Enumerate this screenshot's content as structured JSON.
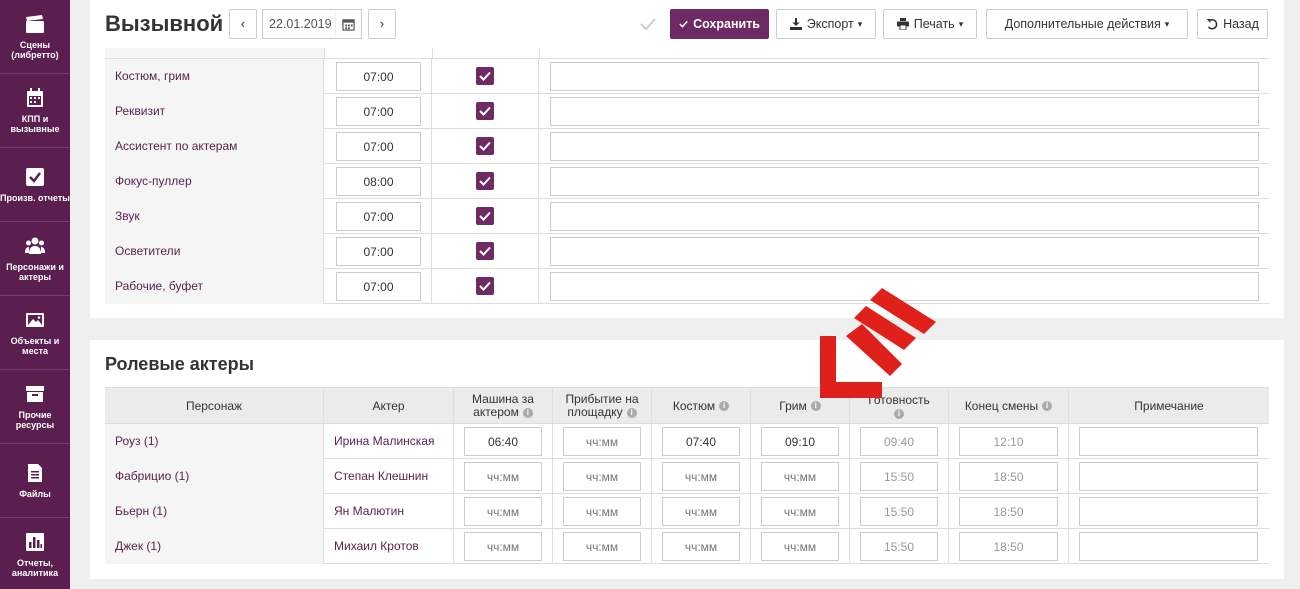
{
  "sidebar": {
    "items": [
      {
        "label": "Сцены (либретто)",
        "icon": "clapperboard-icon"
      },
      {
        "label": "КПП и вызывные",
        "icon": "calendar-icon"
      },
      {
        "label": "Произв. отчеты",
        "icon": "checkbox-icon"
      },
      {
        "label": "Персонажи и актеры",
        "icon": "people-icon"
      },
      {
        "label": "Объекты и места",
        "icon": "picture-icon"
      },
      {
        "label": "Прочие ресурсы",
        "icon": "archive-icon"
      },
      {
        "label": "Файлы",
        "icon": "file-icon"
      },
      {
        "label": "Отчеты, аналитика",
        "icon": "bar-chart-icon"
      }
    ]
  },
  "header": {
    "title": "Вызывной",
    "prev": "‹",
    "next": "›",
    "date": "22.01.2019",
    "save": "Сохранить",
    "export": "Экспорт",
    "print": "Печать",
    "more": "Дополнительные действия",
    "back": "Назад"
  },
  "crew": {
    "rows": [
      {
        "label": "Костюм, грим",
        "time": "07:00",
        "checked": true
      },
      {
        "label": "Реквизит",
        "time": "07:00",
        "checked": true
      },
      {
        "label": "Ассистент по актерам",
        "time": "07:00",
        "checked": true
      },
      {
        "label": "Фокус-пуллер",
        "time": "08:00",
        "checked": true
      },
      {
        "label": "Звук",
        "time": "07:00",
        "checked": true
      },
      {
        "label": "Осветители",
        "time": "07:00",
        "checked": true
      },
      {
        "label": "Рабочие, буфет",
        "time": "07:00",
        "checked": true
      }
    ]
  },
  "actors": {
    "title": "Ролевые актеры",
    "columns": {
      "character": "Персонаж",
      "actor": "Актер",
      "car": "Машина за актером",
      "arrival": "Прибытие на площадку",
      "costume": "Костюм",
      "makeup": "Грим",
      "ready": "Готовность",
      "end": "Конец смены",
      "note": "Примечание"
    },
    "placeholder": "чч:мм",
    "rows": [
      {
        "character": "Роуз (1)",
        "actor": "Ирина Малинская",
        "car": "06:40",
        "arrival": "",
        "costume": "07:40",
        "makeup": "09:10",
        "ready": "09:40",
        "end": "12:10"
      },
      {
        "character": "Фабрицио (1)",
        "actor": "Степан Клешнин",
        "car": "",
        "arrival": "",
        "costume": "",
        "makeup": "",
        "ready": "15:50",
        "end": "18:50"
      },
      {
        "character": "Бьерн (1)",
        "actor": "Ян Малютин",
        "car": "",
        "arrival": "",
        "costume": "",
        "makeup": "",
        "ready": "15:50",
        "end": "18:50"
      },
      {
        "character": "Джек (1)",
        "actor": "Михаил Кротов",
        "car": "",
        "arrival": "",
        "costume": "",
        "makeup": "",
        "ready": "15:50",
        "end": "18:50"
      }
    ]
  },
  "colors": {
    "brand": "#6e2a63",
    "sidebar": "#5a1e4f",
    "arrow": "#e0201b"
  }
}
